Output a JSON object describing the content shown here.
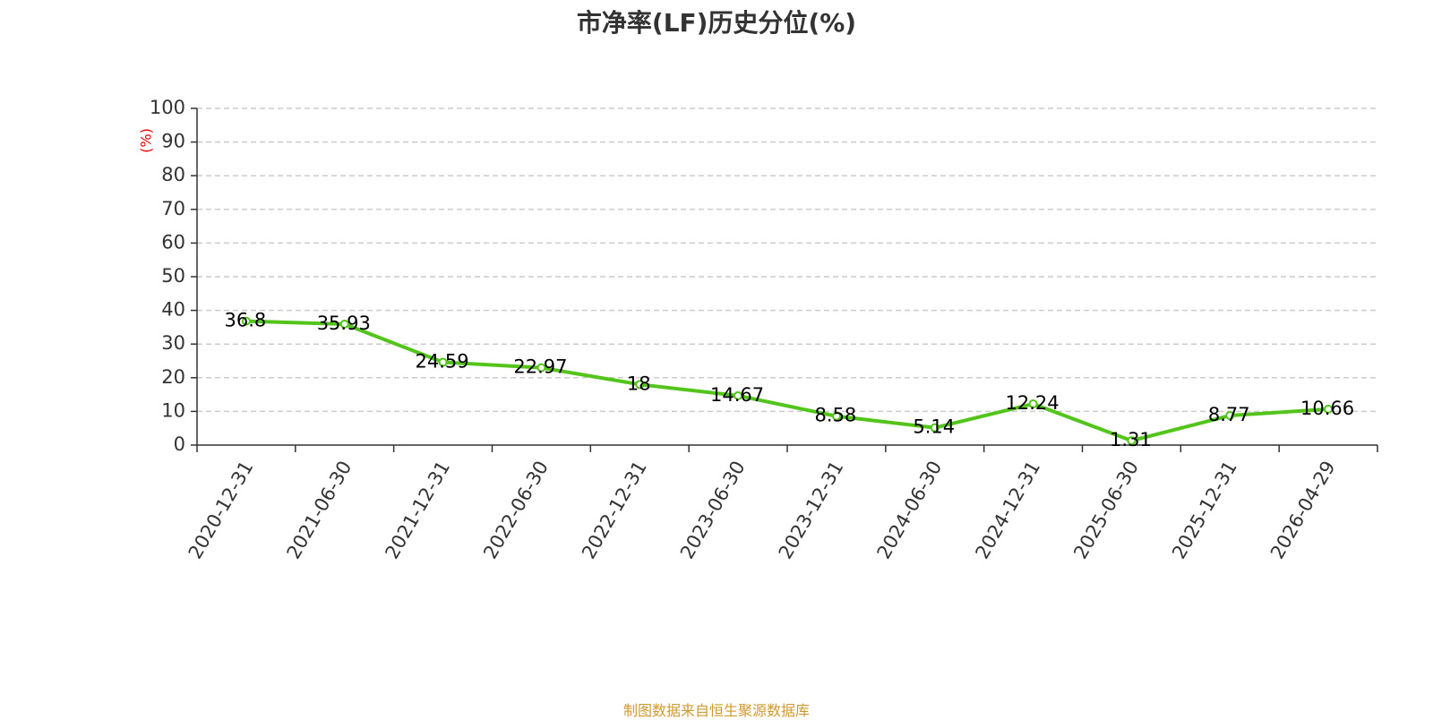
{
  "title": "市净率(LF)历史分位(%)",
  "source_note": "制图数据来自恒生聚源数据库",
  "colors": {
    "line": "#52c41a",
    "unit_label": "#e60000",
    "grid": "#cccccc",
    "axis": "#333333",
    "source_note": "#d09a2f"
  },
  "chart_data": {
    "type": "line",
    "title": "市净率(LF)历史分位(%)",
    "ylabel": "(%)",
    "xlabel": "",
    "ylim": [
      0,
      100
    ],
    "yticks": [
      0,
      10,
      20,
      30,
      40,
      50,
      60,
      70,
      80,
      90,
      100
    ],
    "grid": "horizontal dashed",
    "categories": [
      "2020-12-31",
      "2021-06-30",
      "2021-12-31",
      "2022-06-30",
      "2022-12-31",
      "2023-06-30",
      "2023-12-31",
      "2024-06-30",
      "2024-12-31",
      "2025-06-30",
      "2025-12-31",
      "2026-04-29"
    ],
    "values": [
      36.8,
      35.93,
      24.59,
      22.97,
      18,
      14.67,
      8.58,
      5.14,
      12.24,
      1.31,
      8.77,
      10.66
    ],
    "data_labels": [
      "36.8",
      "35.93",
      "24.59",
      "22.97",
      "18",
      "14.67",
      "8.58",
      "5.14",
      "12.24",
      "1.31",
      "8.77",
      "10.66"
    ]
  }
}
